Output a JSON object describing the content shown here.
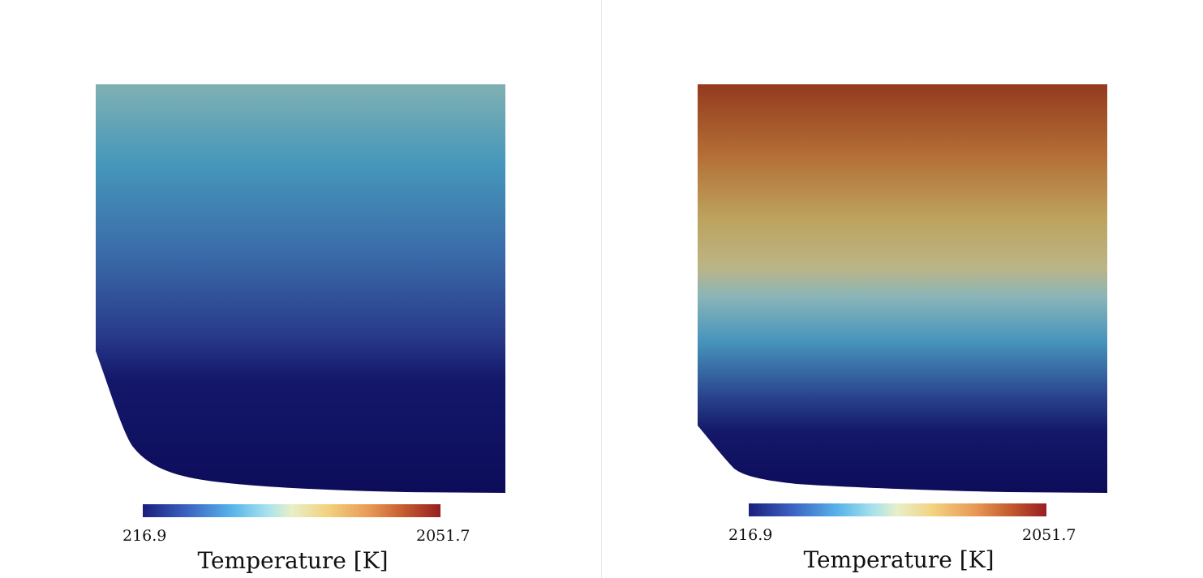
{
  "panels": [
    {
      "colorbar": {
        "min_label": "216.9",
        "max_label": "2051.7",
        "title": "Temperature [K]"
      },
      "field": {
        "shape": "combustion-chamber-section",
        "colormap": "cool-to-warm",
        "colors": [
          "#7fb1b3",
          "#4596bb",
          "#3a6aa8",
          "#28398a",
          "#14186a",
          "#0c0c5a"
        ]
      }
    },
    {
      "colorbar": {
        "min_label": "216.9",
        "max_label": "2051.7",
        "title": "Temperature [K]"
      },
      "field": {
        "shape": "combustion-chamber-section",
        "colormap": "cool-to-warm",
        "colors": [
          "#943a1e",
          "#b9803f",
          "#bbb586",
          "#4694bb",
          "#1a2372",
          "#0c0c5a"
        ]
      }
    }
  ]
}
